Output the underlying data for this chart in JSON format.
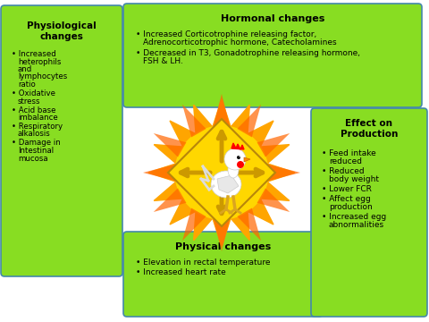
{
  "bg_color": "#ffffff",
  "box_color": "#88dd22",
  "box_edge_color": "#4488aa",
  "title_hormonal": "Hormonal changes",
  "hormonal_bullets": [
    "Increased Corticotrophine releasing factor,\nAdrenocorticotrophic hormone, Catecholamines",
    "Decreased in T3, Gonadotrophine releasing hormone,\nFSH & LH."
  ],
  "title_physiological": "Physiological\nchanges",
  "physiological_bullets": [
    "Increased\nheterophils\nand\nlymphocytes\nratio",
    "Oxidative\nstress",
    "Acid base\nimbalance",
    "Respiratory\nalkalosis",
    "Damage in\nIntestinal\nmucosa"
  ],
  "title_physical": "Physical changes",
  "physical_bullets": [
    "Elevation in rectal temperature",
    "Increased heart rate"
  ],
  "title_effect": "Effect on\nProduction",
  "effect_bullets": [
    "Feed intake\nreduced",
    "Reduced\nbody weight",
    "Lower FCR",
    "Affect egg\nproduction",
    "Increased egg\nabnormalities"
  ],
  "sun_outer_color": "#FFA500",
  "sun_inner_color": "#FFD700",
  "diamond_color": "#FFD700",
  "diamond_edge_color": "#B8860B",
  "arrow_color": "#CC9900"
}
